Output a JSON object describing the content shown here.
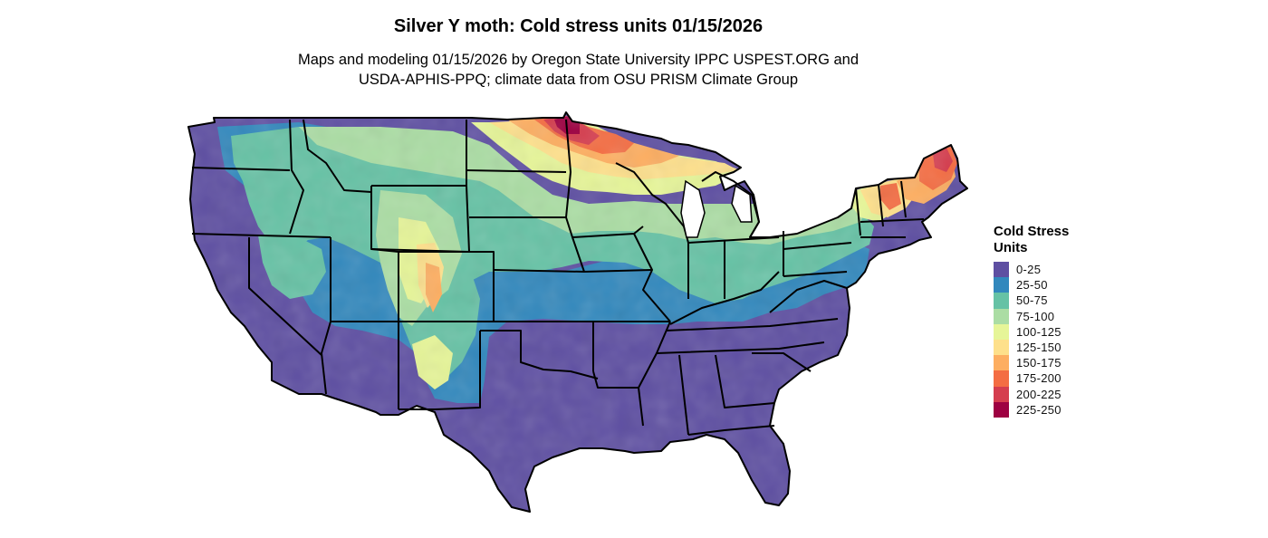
{
  "title": "Silver Y moth: Cold stress units 01/15/2026",
  "subtitle_line1": "Maps and modeling 01/15/2026 by Oregon State University IPPC USPEST.ORG and",
  "subtitle_line2": "USDA-APHIS-PPQ; climate data from OSU PRISM Climate Group",
  "legend": {
    "title": "Cold Stress Units",
    "items": [
      {
        "label": "0-25",
        "color": "#5e4fa2"
      },
      {
        "label": "25-50",
        "color": "#3288bd"
      },
      {
        "label": "50-75",
        "color": "#66c2a5"
      },
      {
        "label": "75-100",
        "color": "#abdda4"
      },
      {
        "label": "100-125",
        "color": "#e6f598"
      },
      {
        "label": "125-150",
        "color": "#fee08b"
      },
      {
        "label": "150-175",
        "color": "#fdae61"
      },
      {
        "label": "175-200",
        "color": "#f46d43"
      },
      {
        "label": "200-225",
        "color": "#d53e4f"
      },
      {
        "label": "225-250",
        "color": "#9e0142"
      }
    ]
  }
}
